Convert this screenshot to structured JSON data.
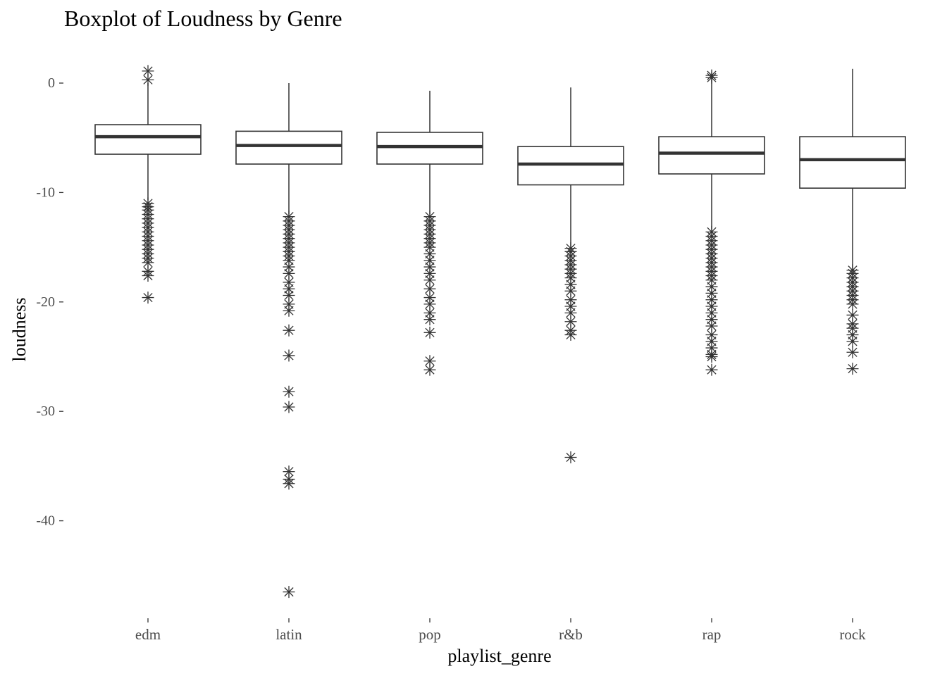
{
  "chart_data": {
    "type": "boxplot",
    "title": "Boxplot of Loudness by Genre",
    "xlabel": "playlist_genre",
    "ylabel": "loudness",
    "ylim": [
      -48,
      2
    ],
    "y_ticks": [
      0,
      -10,
      -20,
      -30,
      -40
    ],
    "grid": false,
    "categories": [
      "edm",
      "latin",
      "pop",
      "r&b",
      "rap",
      "rock"
    ],
    "boxes": [
      {
        "category": "edm",
        "q1": -6.5,
        "median": -4.9,
        "q3": -3.8,
        "whisker_low": -10.7,
        "whisker_high": 0.0,
        "outliers_high": [
          1.1,
          0.3
        ],
        "outliers_low": [
          -11.0,
          -11.3,
          -11.6,
          -12.0,
          -12.4,
          -12.8,
          -13.2,
          -13.6,
          -14.0,
          -14.4,
          -14.8,
          -15.2,
          -15.6,
          -16.0,
          -16.4,
          -17.2,
          -17.6,
          -19.6
        ]
      },
      {
        "category": "latin",
        "q1": -7.4,
        "median": -5.7,
        "q3": -4.4,
        "whisker_low": -12.0,
        "whisker_high": 0.0,
        "outliers_high": [],
        "outliers_low": [
          -12.2,
          -12.6,
          -13.0,
          -13.4,
          -13.8,
          -14.2,
          -14.6,
          -15.0,
          -15.4,
          -15.8,
          -16.2,
          -16.8,
          -17.4,
          -18.2,
          -18.8,
          -19.4,
          -20.2,
          -20.8,
          -22.6,
          -24.9,
          -28.2,
          -29.6,
          -35.5,
          -36.2,
          -36.6,
          -46.5
        ]
      },
      {
        "category": "pop",
        "q1": -7.4,
        "median": -5.8,
        "q3": -4.5,
        "whisker_low": -12.0,
        "whisker_high": -0.7,
        "outliers_high": [],
        "outliers_low": [
          -12.2,
          -12.6,
          -13.0,
          -13.4,
          -13.8,
          -14.2,
          -14.6,
          -15.0,
          -15.6,
          -16.2,
          -16.8,
          -17.4,
          -18.0,
          -18.8,
          -19.6,
          -20.2,
          -21.0,
          -21.6,
          -22.8,
          -25.4,
          -26.2
        ]
      },
      {
        "category": "r&b",
        "q1": -9.3,
        "median": -7.4,
        "q3": -5.8,
        "whisker_low": -14.9,
        "whisker_high": -0.4,
        "outliers_high": [],
        "outliers_low": [
          -15.1,
          -15.4,
          -15.8,
          -16.2,
          -16.6,
          -17.0,
          -17.4,
          -17.8,
          -18.4,
          -19.0,
          -19.8,
          -20.4,
          -21.0,
          -21.8,
          -22.6,
          -23.0,
          -34.2
        ]
      },
      {
        "category": "rap",
        "q1": -8.3,
        "median": -6.4,
        "q3": -4.9,
        "whisker_low": -13.4,
        "whisker_high": 0.3,
        "outliers_high": [
          0.5,
          0.7
        ],
        "outliers_low": [
          -13.6,
          -14.0,
          -14.4,
          -14.8,
          -15.2,
          -15.6,
          -16.0,
          -16.4,
          -16.8,
          -17.2,
          -17.6,
          -18.0,
          -18.6,
          -19.2,
          -19.8,
          -20.4,
          -21.0,
          -21.6,
          -22.2,
          -23.0,
          -23.6,
          -24.2,
          -24.8,
          -25.0,
          -26.2
        ]
      },
      {
        "category": "rock",
        "q1": -9.6,
        "median": -7.0,
        "q3": -4.9,
        "whisker_low": -16.9,
        "whisker_high": 1.3,
        "outliers_high": [],
        "outliers_low": [
          -17.1,
          -17.4,
          -17.8,
          -18.2,
          -18.6,
          -19.0,
          -19.4,
          -19.8,
          -20.2,
          -21.2,
          -22.0,
          -22.4,
          -23.0,
          -23.6,
          -24.6,
          -26.1
        ]
      }
    ]
  }
}
